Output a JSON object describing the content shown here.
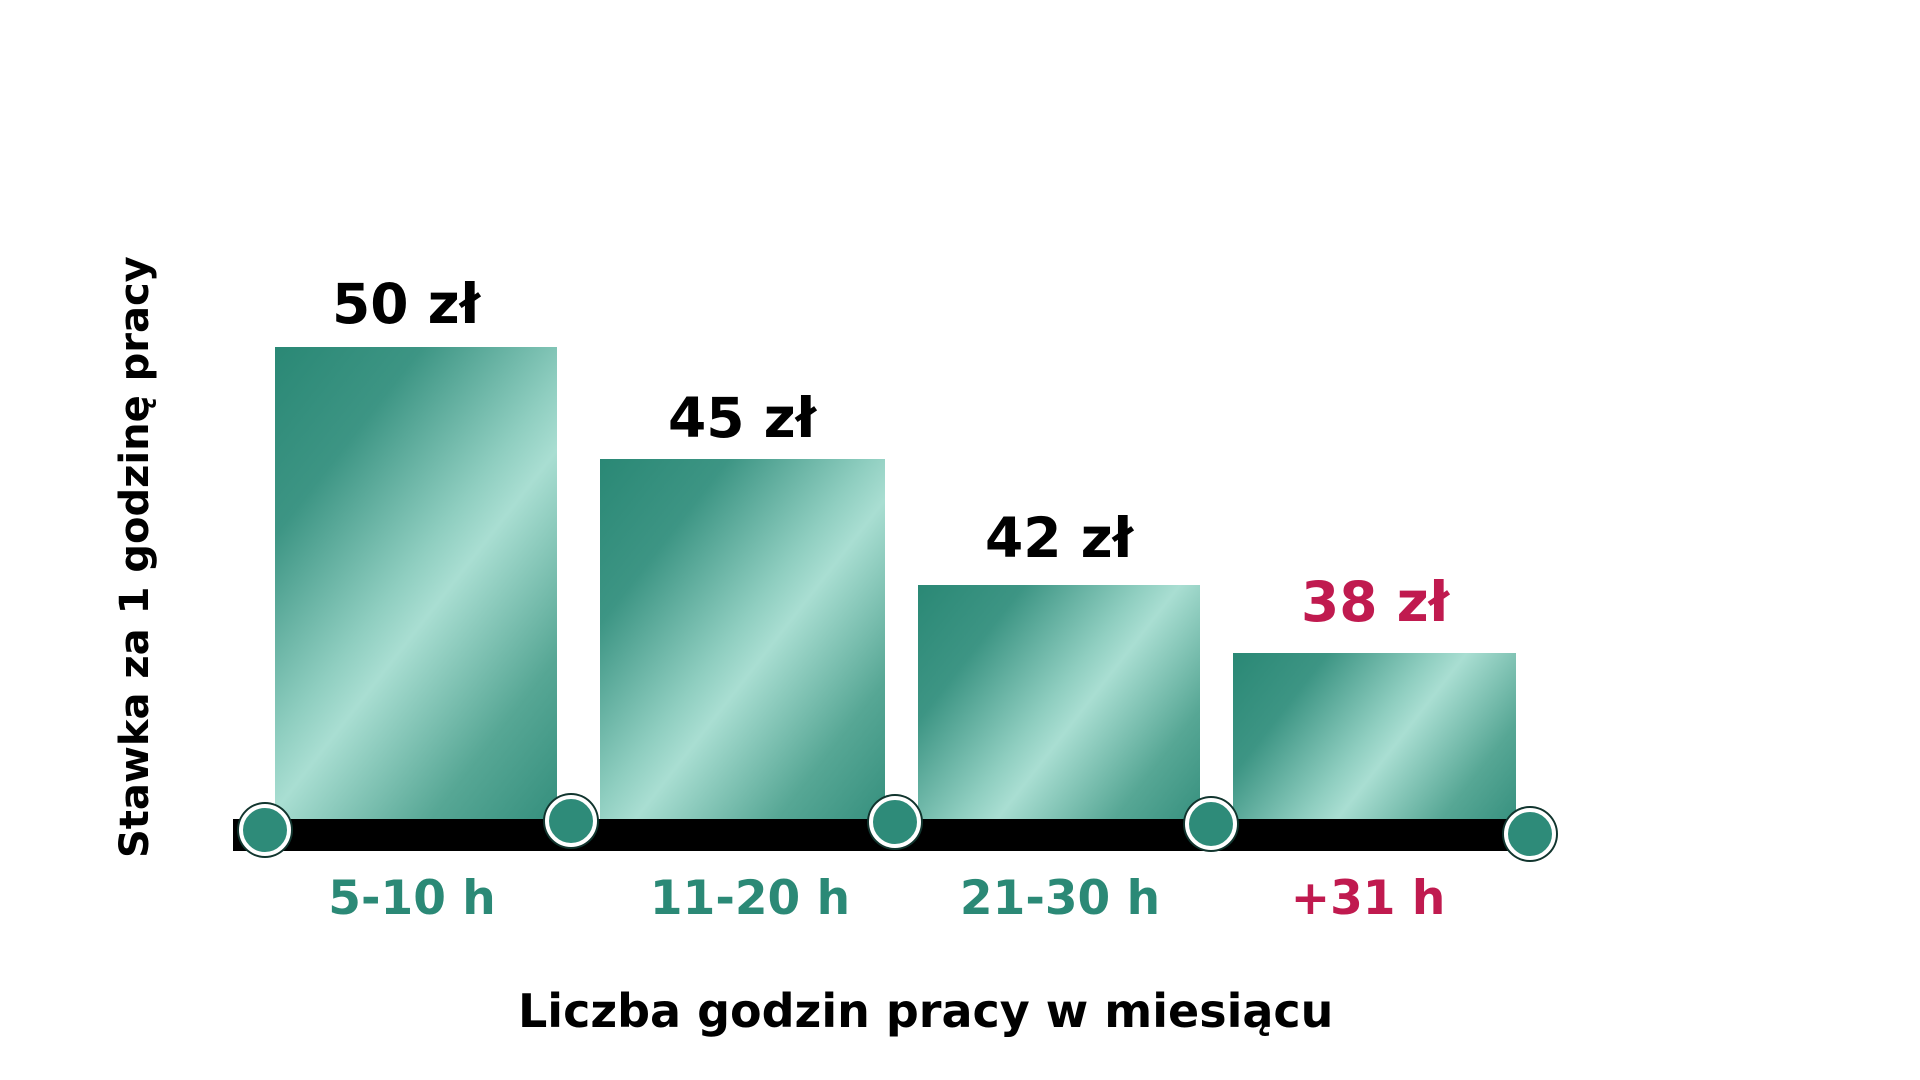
{
  "chart_data": {
    "type": "bar",
    "title": "",
    "categories": [
      "5-10 h",
      "11-20 h",
      "21-30 h",
      "+31 h"
    ],
    "values": [
      50,
      45,
      42,
      38
    ],
    "value_labels": [
      "50 zł",
      "45 zł",
      "42 zł",
      "38 zł"
    ],
    "xlabel": "Liczba godzin pracy w miesiącu",
    "ylabel": "Stawka za 1 godzinę pracy",
    "currency_unit": "zł",
    "highlighted_category": "+31 h",
    "legend_position": "none",
    "grid": false,
    "axis_style": "thick black baseline with teal node dots at bar boundaries",
    "colors": {
      "bar_gradient_dark": "#2a8875",
      "bar_gradient_light": "#a9ded2",
      "axis_line": "#000000",
      "value_label_text": "#000000",
      "category_label_teal": "#2b8976",
      "highlight_crimson": "#c01a4f",
      "dot_fill": "#2e8b79",
      "dot_ring": "#ffffff",
      "background": "#ffffff"
    }
  },
  "bars": [
    {
      "category": "5-10 h",
      "value": 50,
      "value_label": "50 zł",
      "highlighted": false
    },
    {
      "category": "11-20 h",
      "value": 45,
      "value_label": "45 zł",
      "highlighted": false
    },
    {
      "category": "21-30 h",
      "value": 42,
      "value_label": "42 zł",
      "highlighted": false
    },
    {
      "category": "+31 h",
      "value": 38,
      "value_label": "38 zł",
      "highlighted": true
    }
  ]
}
